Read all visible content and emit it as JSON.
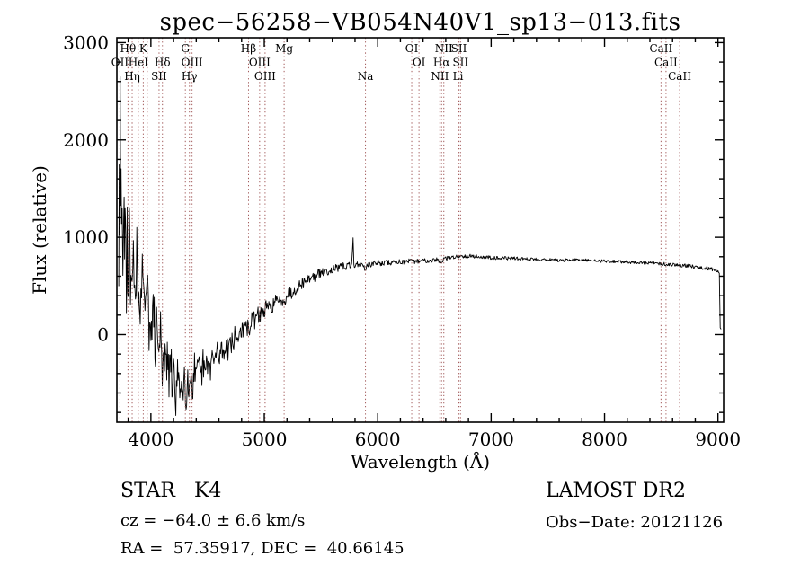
{
  "annotations": {
    "class_label": "STAR   K4",
    "survey": "LAMOST DR2",
    "cz": "cz = −64.0 ± 6.6 km/s",
    "obs_date": "Obs−Date: 20121126",
    "radec": "RA =  57.35917, DEC =  40.66145"
  },
  "chart_data": {
    "type": "line",
    "title": "spec−56258−VB054N40V1_sp13−013.fits",
    "xlabel": "Wavelength (Å)",
    "ylabel": "Flux (relative)",
    "xlim": [
      3700,
      9050
    ],
    "ylim": [
      -900,
      3050
    ],
    "xticks": [
      4000,
      5000,
      6000,
      7000,
      8000,
      9000
    ],
    "yticks": [
      0,
      1000,
      2000,
      3000
    ],
    "x_minor_step": 200,
    "y_minor_step": 200,
    "grid": false,
    "legend": "none",
    "series_color": "#000000",
    "ref_line_color": "#a25a5a",
    "spectral_lines": [
      3727,
      3798,
      3835,
      3889,
      3933,
      3968,
      4072,
      4102,
      4304,
      4340,
      4363,
      4861,
      4959,
      5007,
      5175,
      5892,
      6300,
      6364,
      6548,
      6563,
      6583,
      6708,
      6716,
      6730,
      8498,
      8542,
      8662
    ],
    "line_labels": [
      {
        "text": "Hθ",
        "wavelength": 3798,
        "row": 1
      },
      {
        "text": "K",
        "wavelength": 3933,
        "row": 1
      },
      {
        "text": "G",
        "wavelength": 4304,
        "row": 1
      },
      {
        "text": "Hβ",
        "wavelength": 4861,
        "row": 1
      },
      {
        "text": "Mg",
        "wavelength": 5175,
        "row": 1
      },
      {
        "text": "OI",
        "wavelength": 6300,
        "row": 1
      },
      {
        "text": "NII",
        "wavelength": 6583,
        "row": 1
      },
      {
        "text": "SII",
        "wavelength": 6716,
        "row": 1
      },
      {
        "text": "CaII",
        "wavelength": 8498,
        "row": 1
      },
      {
        "text": "OII",
        "wavelength": 3727,
        "row": 2
      },
      {
        "text": "HeI",
        "wavelength": 3889,
        "row": 2
      },
      {
        "text": "Hδ",
        "wavelength": 4102,
        "row": 2
      },
      {
        "text": "OIII",
        "wavelength": 4363,
        "row": 2
      },
      {
        "text": "OIII",
        "wavelength": 4959,
        "row": 2
      },
      {
        "text": "OI",
        "wavelength": 6364,
        "row": 2
      },
      {
        "text": "Hα",
        "wavelength": 6563,
        "row": 2
      },
      {
        "text": "SII",
        "wavelength": 6730,
        "row": 2
      },
      {
        "text": "CaII",
        "wavelength": 8542,
        "row": 2
      },
      {
        "text": "Hη",
        "wavelength": 3835,
        "row": 3
      },
      {
        "text": "SII",
        "wavelength": 4072,
        "row": 3
      },
      {
        "text": "Hγ",
        "wavelength": 4340,
        "row": 3
      },
      {
        "text": "OIII",
        "wavelength": 5007,
        "row": 3
      },
      {
        "text": "Na",
        "wavelength": 5892,
        "row": 3
      },
      {
        "text": "NII",
        "wavelength": 6548,
        "row": 3
      },
      {
        "text": "Li",
        "wavelength": 6708,
        "row": 3
      },
      {
        "text": "CaII",
        "wavelength": 8662,
        "row": 3
      }
    ],
    "series": [
      {
        "name": "spectrum",
        "seed": 29,
        "sample_step": 5,
        "anchors": [
          [
            3717,
            700,
            400
          ],
          [
            3721,
            1500,
            300
          ],
          [
            3725,
            900,
            350
          ],
          [
            3729,
            2650,
            0
          ],
          [
            3733,
            1200,
            300
          ],
          [
            3737,
            1800,
            250
          ],
          [
            3741,
            900,
            350
          ],
          [
            3747,
            1500,
            350
          ],
          [
            3753,
            800,
            400
          ],
          [
            3760,
            1400,
            400
          ],
          [
            3768,
            700,
            400
          ],
          [
            3776,
            1200,
            400
          ],
          [
            3784,
            600,
            400
          ],
          [
            3792,
            1100,
            420
          ],
          [
            3800,
            500,
            400
          ],
          [
            3810,
            1000,
            420
          ],
          [
            3820,
            450,
            400
          ],
          [
            3830,
            900,
            400
          ],
          [
            3840,
            400,
            380
          ],
          [
            3852,
            850,
            400
          ],
          [
            3864,
            350,
            380
          ],
          [
            3876,
            750,
            380
          ],
          [
            3888,
            300,
            360
          ],
          [
            3900,
            650,
            380
          ],
          [
            3912,
            250,
            350
          ],
          [
            3924,
            550,
            360
          ],
          [
            3936,
            200,
            340
          ],
          [
            3948,
            500,
            350
          ],
          [
            3960,
            150,
            320
          ],
          [
            3972,
            420,
            330
          ],
          [
            3984,
            80,
            300
          ],
          [
            3996,
            350,
            320
          ],
          [
            4010,
            0,
            300
          ],
          [
            4025,
            260,
            300
          ],
          [
            4040,
            -120,
            280
          ],
          [
            4055,
            160,
            280
          ],
          [
            4070,
            -260,
            260
          ],
          [
            4085,
            60,
            280
          ],
          [
            4100,
            -350,
            260
          ],
          [
            4115,
            -60,
            260
          ],
          [
            4130,
            -430,
            240
          ],
          [
            4145,
            -160,
            250
          ],
          [
            4160,
            -520,
            230
          ],
          [
            4175,
            -240,
            240
          ],
          [
            4190,
            -620,
            220
          ],
          [
            4205,
            -320,
            230
          ],
          [
            4220,
            -680,
            220
          ],
          [
            4235,
            -380,
            230
          ],
          [
            4250,
            -650,
            220
          ],
          [
            4265,
            -400,
            220
          ],
          [
            4280,
            -640,
            210
          ],
          [
            4295,
            -420,
            210
          ],
          [
            4310,
            -600,
            200
          ],
          [
            4325,
            -400,
            200
          ],
          [
            4340,
            -580,
            190
          ],
          [
            4355,
            -380,
            190
          ],
          [
            4370,
            -540,
            185
          ],
          [
            4385,
            -350,
            185
          ],
          [
            4400,
            -500,
            180
          ],
          [
            4420,
            -330,
            175
          ],
          [
            4440,
            -470,
            170
          ],
          [
            4460,
            -300,
            165
          ],
          [
            4480,
            -420,
            160
          ],
          [
            4500,
            -270,
            155
          ],
          [
            4520,
            -360,
            150
          ],
          [
            4540,
            -220,
            145
          ],
          [
            4560,
            -300,
            140
          ],
          [
            4580,
            -170,
            135
          ],
          [
            4600,
            -250,
            130
          ],
          [
            4620,
            -130,
            128
          ],
          [
            4640,
            -200,
            125
          ],
          [
            4660,
            -90,
            122
          ],
          [
            4680,
            -150,
            118
          ],
          [
            4700,
            -50,
            115
          ],
          [
            4720,
            -110,
            112
          ],
          [
            4740,
            -20,
            110
          ],
          [
            4760,
            -70,
            108
          ],
          [
            4780,
            20,
            105
          ],
          [
            4800,
            60,
            102
          ],
          [
            4820,
            30,
            100
          ],
          [
            4840,
            90,
            100
          ],
          [
            4860,
            50,
            98
          ],
          [
            4880,
            120,
            96
          ],
          [
            4900,
            160,
            94
          ],
          [
            4920,
            140,
            92
          ],
          [
            4940,
            190,
            90
          ],
          [
            4960,
            220,
            88
          ],
          [
            4980,
            200,
            86
          ],
          [
            5000,
            250,
            84
          ],
          [
            5025,
            280,
            82
          ],
          [
            5050,
            260,
            80
          ],
          [
            5075,
            310,
            78
          ],
          [
            5100,
            340,
            76
          ],
          [
            5125,
            320,
            74
          ],
          [
            5150,
            370,
            72
          ],
          [
            5175,
            350,
            70
          ],
          [
            5200,
            410,
            68
          ],
          [
            5225,
            440,
            66
          ],
          [
            5250,
            420,
            64
          ],
          [
            5275,
            470,
            62
          ],
          [
            5300,
            500,
            60
          ],
          [
            5325,
            520,
            58
          ],
          [
            5350,
            540,
            56
          ],
          [
            5375,
            560,
            54
          ],
          [
            5400,
            580,
            52
          ],
          [
            5425,
            600,
            50
          ],
          [
            5450,
            590,
            49
          ],
          [
            5475,
            620,
            48
          ],
          [
            5500,
            640,
            47
          ],
          [
            5525,
            630,
            46
          ],
          [
            5550,
            660,
            45
          ],
          [
            5575,
            650,
            44
          ],
          [
            5600,
            675,
            43
          ],
          [
            5625,
            685,
            42
          ],
          [
            5650,
            670,
            41
          ],
          [
            5675,
            695,
            40
          ],
          [
            5700,
            705,
            39
          ],
          [
            5725,
            695,
            38
          ],
          [
            5750,
            715,
            37
          ],
          [
            5770,
            700,
            36
          ],
          [
            5783,
            995,
            0
          ],
          [
            5790,
            720,
            34
          ],
          [
            5815,
            725,
            33
          ],
          [
            5840,
            718,
            32
          ],
          [
            5865,
            712,
            32
          ],
          [
            5890,
            678,
            28
          ],
          [
            5915,
            710,
            31
          ],
          [
            5940,
            725,
            31
          ],
          [
            5970,
            732,
            30
          ],
          [
            6000,
            738,
            30
          ],
          [
            6040,
            733,
            29
          ],
          [
            6080,
            742,
            29
          ],
          [
            6120,
            738,
            28
          ],
          [
            6160,
            746,
            28
          ],
          [
            6200,
            750,
            27
          ],
          [
            6240,
            747,
            27
          ],
          [
            6280,
            752,
            26
          ],
          [
            6320,
            750,
            26
          ],
          [
            6360,
            756,
            25
          ],
          [
            6400,
            760,
            25
          ],
          [
            6440,
            763,
            24
          ],
          [
            6480,
            766,
            24
          ],
          [
            6520,
            770,
            24
          ],
          [
            6555,
            745,
            20
          ],
          [
            6563,
            735,
            0
          ],
          [
            6575,
            772,
            23
          ],
          [
            6610,
            782,
            23
          ],
          [
            6650,
            792,
            22
          ],
          [
            6690,
            800,
            22
          ],
          [
            6730,
            806,
            21
          ],
          [
            6770,
            810,
            21
          ],
          [
            6810,
            808,
            20
          ],
          [
            6850,
            804,
            20
          ],
          [
            6890,
            800,
            20
          ],
          [
            6930,
            796,
            19
          ],
          [
            6970,
            793,
            19
          ],
          [
            7010,
            790,
            18
          ],
          [
            7060,
            788,
            18
          ],
          [
            7110,
            786,
            18
          ],
          [
            7160,
            784,
            17
          ],
          [
            7210,
            782,
            17
          ],
          [
            7260,
            780,
            17
          ],
          [
            7310,
            778,
            17
          ],
          [
            7360,
            776,
            16
          ],
          [
            7410,
            774,
            16
          ],
          [
            7460,
            772,
            16
          ],
          [
            7510,
            771,
            16
          ],
          [
            7560,
            769,
            16
          ],
          [
            7610,
            758,
            16
          ],
          [
            7660,
            766,
            15
          ],
          [
            7710,
            768,
            15
          ],
          [
            7760,
            766,
            15
          ],
          [
            7810,
            764,
            15
          ],
          [
            7860,
            762,
            15
          ],
          [
            7910,
            760,
            15
          ],
          [
            7960,
            757,
            15
          ],
          [
            8010,
            754,
            15
          ],
          [
            8060,
            752,
            15
          ],
          [
            8110,
            750,
            15
          ],
          [
            8160,
            748,
            16
          ],
          [
            8210,
            745,
            16
          ],
          [
            8260,
            742,
            16
          ],
          [
            8310,
            739,
            16
          ],
          [
            8360,
            736,
            17
          ],
          [
            8410,
            733,
            17
          ],
          [
            8460,
            730,
            17
          ],
          [
            8510,
            726,
            17
          ],
          [
            8560,
            722,
            17
          ],
          [
            8610,
            718,
            18
          ],
          [
            8660,
            714,
            18
          ],
          [
            8710,
            710,
            18
          ],
          [
            8760,
            704,
            19
          ],
          [
            8810,
            697,
            19
          ],
          [
            8860,
            689,
            20
          ],
          [
            8910,
            681,
            20
          ],
          [
            8950,
            672,
            20
          ],
          [
            8980,
            662,
            18
          ],
          [
            9000,
            650,
            14
          ],
          [
            9012,
            630,
            8
          ],
          [
            9020,
            70,
            0
          ],
          [
            9028,
            55,
            0
          ]
        ]
      }
    ]
  }
}
